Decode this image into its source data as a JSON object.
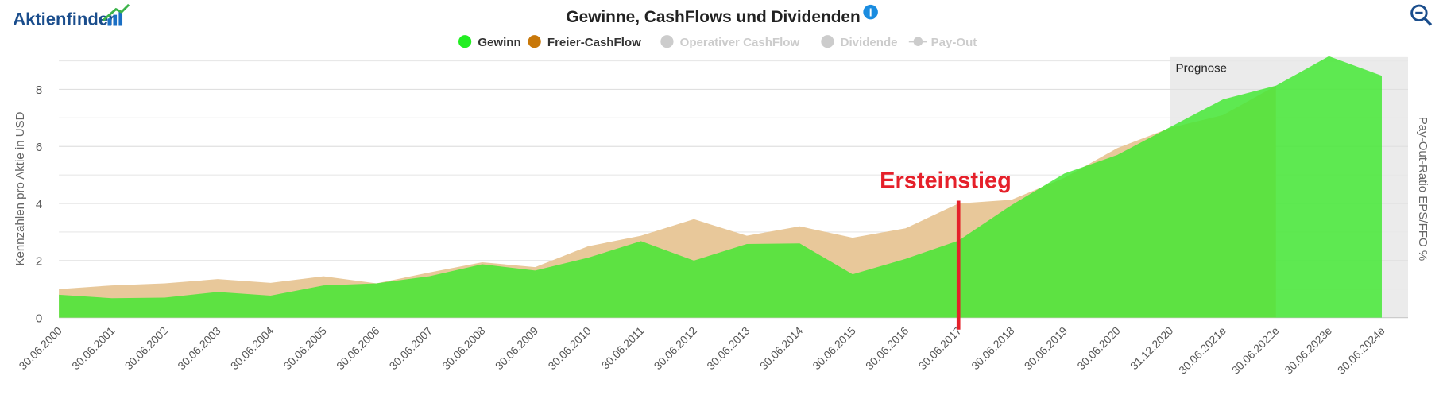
{
  "chart_data": {
    "type": "area",
    "logo": "Aktienfinder",
    "title": "Gewinne, CashFlows und Dividenden",
    "y_label": "Kennzahlen pro Aktie in USD",
    "y2_label": "Pay-Out-Ratio EPS/FFO %",
    "categories": [
      "30.06.2000",
      "30.06.2001",
      "30.06.2002",
      "30.06.2003",
      "30.06.2004",
      "30.06.2005",
      "30.06.2006",
      "30.06.2007",
      "30.06.2008",
      "30.06.2009",
      "30.06.2010",
      "30.06.2011",
      "30.06.2012",
      "30.06.2013",
      "30.06.2014",
      "30.06.2015",
      "30.06.2016",
      "30.06.2017",
      "30.06.2018",
      "30.06.2019",
      "30.06.2020",
      "31.12.2020",
      "30.06.2021e",
      "30.06.2022e",
      "30.06.2023e",
      "30.06.2024e"
    ],
    "series": [
      {
        "name": "Freier-CashFlow",
        "color": "#c8780a",
        "area_color": "#e8c89a",
        "visible": true,
        "values": [
          1.0,
          1.13,
          1.2,
          1.35,
          1.22,
          1.45,
          1.2,
          1.58,
          1.94,
          1.77,
          2.5,
          2.87,
          3.45,
          2.87,
          3.2,
          2.8,
          3.13,
          4.0,
          4.13,
          4.9,
          5.94,
          6.65,
          7.1,
          8.13,
          null,
          null
        ]
      },
      {
        "name": "Gewinn",
        "color": "#22ee22",
        "area_color": "#3ee82e",
        "visible": true,
        "values": [
          0.8,
          0.68,
          0.7,
          0.9,
          0.77,
          1.13,
          1.2,
          1.45,
          1.87,
          1.65,
          2.1,
          2.68,
          2.0,
          2.58,
          2.6,
          1.52,
          2.06,
          2.7,
          3.94,
          5.05,
          5.7,
          6.68,
          7.65,
          8.13,
          9.16,
          8.48
        ]
      },
      {
        "name": "Operativer CashFlow",
        "color": "#cccccc",
        "visible": false,
        "values": [
          null,
          null,
          null,
          null,
          null,
          null,
          null,
          null,
          null,
          null,
          null,
          null,
          null,
          null,
          null,
          null,
          null,
          null,
          null,
          null,
          null,
          null,
          null,
          null,
          null,
          null
        ]
      },
      {
        "name": "Dividende",
        "color": "#cccccc",
        "visible": false,
        "values": [
          null,
          null,
          null,
          null,
          null,
          null,
          null,
          null,
          null,
          null,
          null,
          null,
          null,
          null,
          null,
          null,
          null,
          null,
          null,
          null,
          null,
          null,
          null,
          null,
          null,
          null
        ]
      },
      {
        "name": "Pay-Out",
        "color": "#cccccc",
        "visible": false,
        "line_marker": true,
        "values": [
          null,
          null,
          null,
          null,
          null,
          null,
          null,
          null,
          null,
          null,
          null,
          null,
          null,
          null,
          null,
          null,
          null,
          null,
          null,
          null,
          null,
          null,
          null,
          null,
          null,
          null
        ]
      }
    ],
    "legend_order": [
      1,
      0,
      2,
      3,
      4
    ],
    "ylim": [
      0,
      9.13
    ],
    "yticks": [
      0,
      2,
      4,
      6,
      8
    ],
    "minor_yticks": [
      1,
      3,
      5,
      7,
      9
    ],
    "grid": true,
    "forecast": {
      "label": "Prognose",
      "start": "31.12.2020"
    },
    "annotation": {
      "text": "Ersteinstieg",
      "at": "30.06.2017",
      "color": "#e5202a"
    }
  }
}
